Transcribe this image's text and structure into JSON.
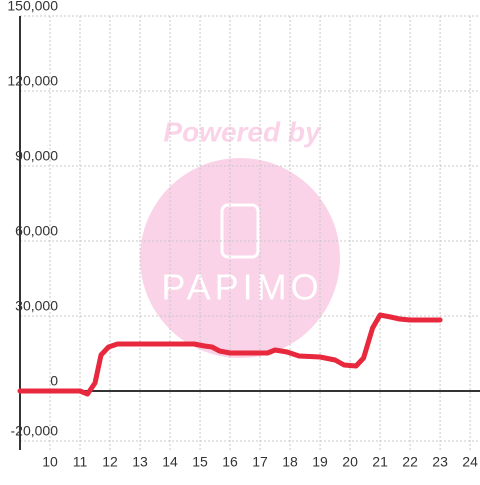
{
  "chart_data": {
    "type": "line",
    "watermark": {
      "line1": "Powered by",
      "line2": "PAPIMO"
    },
    "x": [
      9,
      11,
      11.25,
      11.5,
      11.7,
      11.95,
      12.25,
      14.8,
      15.15,
      15.4,
      15.65,
      16,
      17.25,
      17.5,
      17.9,
      18.3,
      19,
      19.5,
      19.8,
      20.2,
      20.45,
      20.75,
      21,
      21.35,
      21.65,
      22,
      23
    ],
    "series": [
      {
        "color": "#e8283c",
        "values": [
          0,
          0,
          -1200,
          3200,
          14400,
          17600,
          18800,
          18800,
          18000,
          17600,
          16000,
          15200,
          15200,
          16400,
          15600,
          14000,
          13600,
          12400,
          10400,
          10000,
          13200,
          25200,
          30400,
          29600,
          28800,
          28400,
          28400
        ]
      }
    ],
    "xlim": [
      9,
      24.33
    ],
    "ylim": [
      -23600,
      150000
    ],
    "xticks": [
      10,
      11,
      12,
      13,
      14,
      15,
      16,
      17,
      18,
      19,
      20,
      21,
      22,
      23,
      24
    ],
    "yticks": [
      {
        "value": -20000,
        "label": "-20,000"
      },
      0,
      {
        "value": 30000,
        "label": "30,000"
      },
      {
        "value": 60000,
        "label": "60,000"
      },
      {
        "value": 90000,
        "label": "90,000"
      },
      {
        "value": 120000,
        "label": "120,000"
      },
      {
        "value": 150000,
        "label": "150,000"
      }
    ],
    "grid": true
  }
}
